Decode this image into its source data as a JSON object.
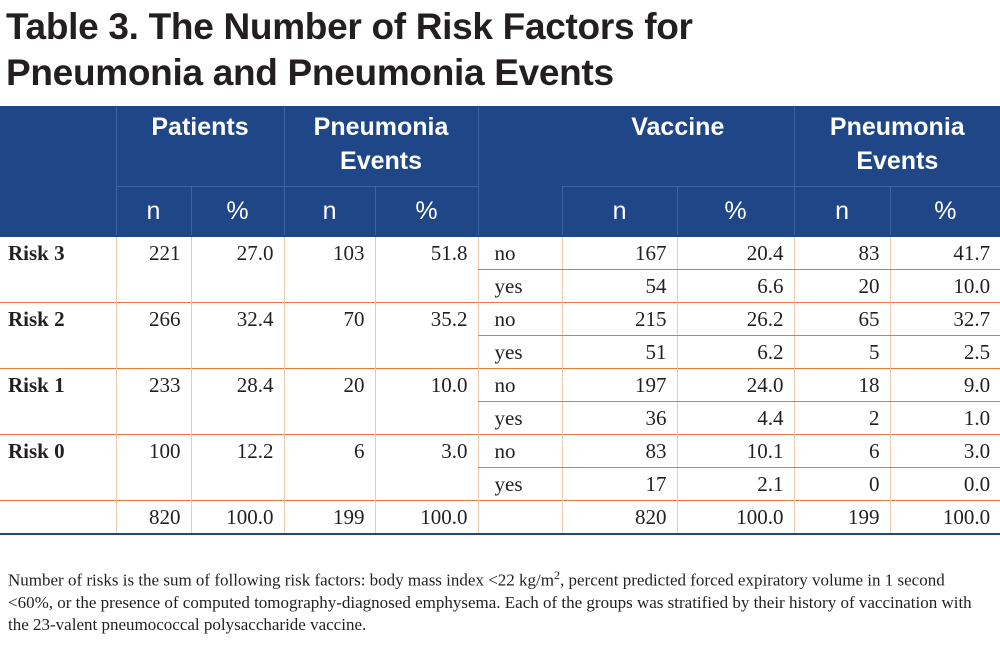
{
  "title": {
    "line1": "Table 3. The Number of Risk Factors for",
    "line2": "Pneumonia and Pneumonia Events"
  },
  "headers": {
    "patients": "Patients",
    "pneumonia_events": "Pneumonia Events",
    "vaccine": "Vaccine",
    "pneumonia_events_2": "Pneumonia Events",
    "n": "n",
    "pct": "%"
  },
  "rows": [
    {
      "risk": "Risk 3",
      "patients_n": "221",
      "patients_pct": "27.0",
      "events_n": "103",
      "events_pct": "51.8",
      "vaccine": [
        {
          "label": "no",
          "n": "167",
          "pct": "20.4",
          "ev_n": "83",
          "ev_pct": "41.7"
        },
        {
          "label": "yes",
          "n": "54",
          "pct": "6.6",
          "ev_n": "20",
          "ev_pct": "10.0"
        }
      ]
    },
    {
      "risk": "Risk 2",
      "patients_n": "266",
      "patients_pct": "32.4",
      "events_n": "70",
      "events_pct": "35.2",
      "vaccine": [
        {
          "label": "no",
          "n": "215",
          "pct": "26.2",
          "ev_n": "65",
          "ev_pct": "32.7"
        },
        {
          "label": "yes",
          "n": "51",
          "pct": "6.2",
          "ev_n": "5",
          "ev_pct": "2.5"
        }
      ]
    },
    {
      "risk": "Risk 1",
      "patients_n": "233",
      "patients_pct": "28.4",
      "events_n": "20",
      "events_pct": "10.0",
      "vaccine": [
        {
          "label": "no",
          "n": "197",
          "pct": "24.0",
          "ev_n": "18",
          "ev_pct": "9.0"
        },
        {
          "label": "yes",
          "n": "36",
          "pct": "4.4",
          "ev_n": "2",
          "ev_pct": "1.0"
        }
      ]
    },
    {
      "risk": "Risk 0",
      "patients_n": "100",
      "patients_pct": "12.2",
      "events_n": "6",
      "events_pct": "3.0",
      "vaccine": [
        {
          "label": "no",
          "n": "83",
          "pct": "10.1",
          "ev_n": "6",
          "ev_pct": "3.0"
        },
        {
          "label": "yes",
          "n": "17",
          "pct": "2.1",
          "ev_n": "0",
          "ev_pct": "0.0"
        }
      ]
    }
  ],
  "total": {
    "patients_n": "820",
    "patients_pct": "100.0",
    "events_n": "199",
    "events_pct": "100.0",
    "vaccine_n": "820",
    "vaccine_pct": "100.0",
    "ev_n": "199",
    "ev_pct": "100.0"
  },
  "footnote": {
    "part1": "Number of risks is the sum of following risk factors: body mass index <22 kg/m",
    "sup": "2",
    "part2": ", percent predicted forced expiratory volume in 1 second <60%, or the presence of computed tomography-diagnosed emphysema. Each of the groups was stratified by their history of vaccination with the 23-valent pneumococcal polysaccharide vaccine."
  }
}
